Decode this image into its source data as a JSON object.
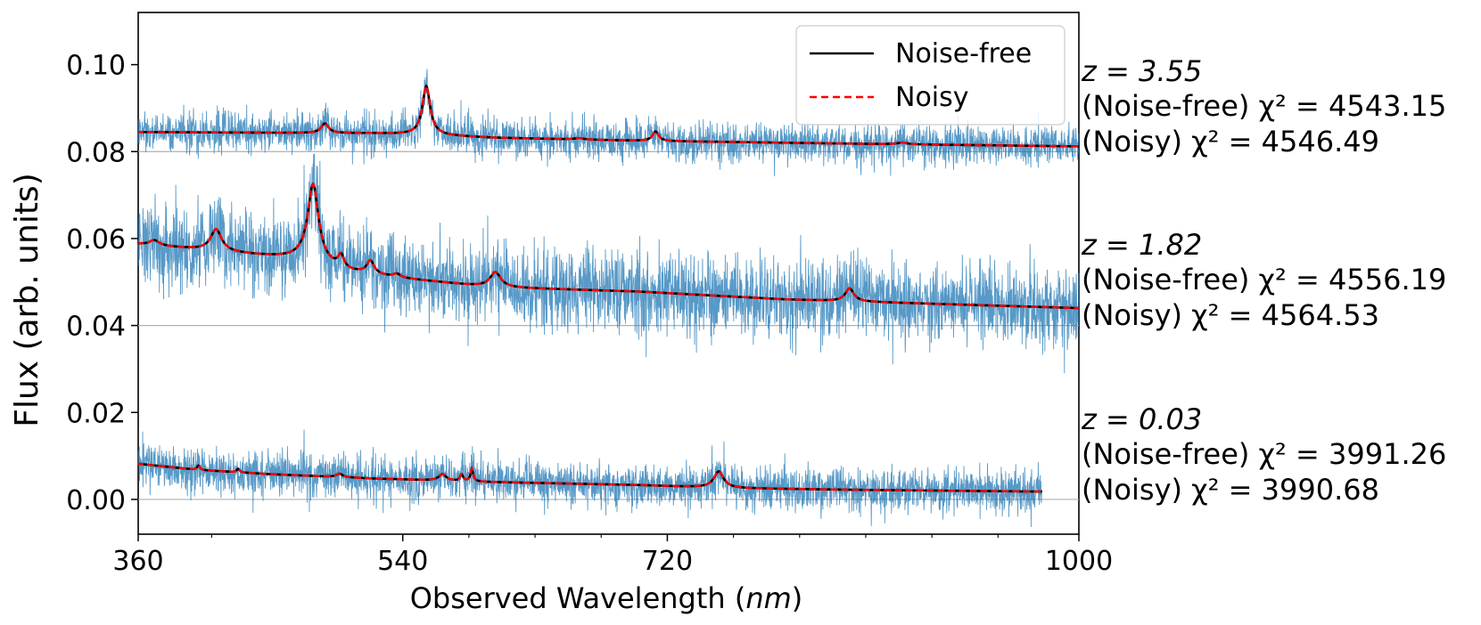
{
  "chart_data": {
    "type": "line",
    "title": "",
    "xlabel": "Observed Wavelength",
    "xlabel_unit": "nm",
    "ylabel": "Flux (arb. units)",
    "xlim": [
      360,
      1000
    ],
    "ylim": [
      -0.008,
      0.112
    ],
    "x_ticks": [
      {
        "value": 360,
        "label": "360"
      },
      {
        "value": 540,
        "label": "540"
      },
      {
        "value": 720,
        "label": "720"
      },
      {
        "value": 1000,
        "label": "1000"
      }
    ],
    "x_minor_ticks": [
      410,
      585,
      630,
      675,
      765,
      810,
      855,
      900,
      945
    ],
    "y_ticks": [
      {
        "value": 0.0,
        "label": "0.00"
      },
      {
        "value": 0.02,
        "label": "0.02"
      },
      {
        "value": 0.04,
        "label": "0.04"
      },
      {
        "value": 0.06,
        "label": "0.06"
      },
      {
        "value": 0.08,
        "label": "0.08"
      },
      {
        "value": 0.1,
        "label": "0.10"
      }
    ],
    "legend": {
      "placement": "top-right",
      "entries": [
        {
          "label": "Noise-free",
          "color": "#000000",
          "style": "solid"
        },
        {
          "label": "Noisy",
          "color": "#ff0000",
          "style": "dashed"
        }
      ]
    },
    "noise_color": "#1f77b4",
    "spectra": [
      {
        "name": "z = 3.55",
        "redshift_label": "z = 3.55",
        "noise_free_chi2_text": "(Noise-free) χ² = 4543.15",
        "noisy_chi2_text": "(Noisy) χ² = 4546.49",
        "offset": 0.08,
        "x_range": [
          360,
          1000
        ],
        "noise_sigma": 0.0022,
        "continuum": [
          [
            360,
            0.0845
          ],
          [
            520,
            0.0842
          ],
          [
            560,
            0.0838
          ],
          [
            600,
            0.0832
          ],
          [
            700,
            0.0825
          ],
          [
            850,
            0.0818
          ],
          [
            1000,
            0.0812
          ]
        ],
        "peaks": [
          {
            "center": 487,
            "amp": 0.0022,
            "width": 3
          },
          {
            "center": 556,
            "amp": 0.0112,
            "width": 3.2
          },
          {
            "center": 712,
            "amp": 0.0022,
            "width": 2.5
          },
          {
            "center": 660,
            "amp": 0.0003,
            "width": 4
          },
          {
            "center": 880,
            "amp": 0.0004,
            "width": 4
          }
        ]
      },
      {
        "name": "z = 1.82",
        "redshift_label": "z = 1.82",
        "noise_free_chi2_text": "(Noise-free) χ² = 4556.19",
        "noisy_chi2_text": "(Noisy) χ² = 4564.53",
        "offset": 0.04,
        "x_range": [
          360,
          1000
        ],
        "noise_sigma": 0.0045,
        "continuum": [
          [
            360,
            0.0587
          ],
          [
            400,
            0.0575
          ],
          [
            440,
            0.0562
          ],
          [
            470,
            0.0553
          ],
          [
            500,
            0.0525
          ],
          [
            540,
            0.0508
          ],
          [
            600,
            0.0488
          ],
          [
            700,
            0.0478
          ],
          [
            800,
            0.046
          ],
          [
            900,
            0.045
          ],
          [
            1000,
            0.044
          ]
        ],
        "peaks": [
          {
            "center": 371,
            "amp": 0.0012,
            "width": 4
          },
          {
            "center": 413,
            "amp": 0.005,
            "width": 4.5
          },
          {
            "center": 479,
            "amp": 0.018,
            "width": 4.5
          },
          {
            "center": 498,
            "amp": 0.003,
            "width": 2.5
          },
          {
            "center": 518,
            "amp": 0.003,
            "width": 3
          },
          {
            "center": 536,
            "amp": 0.0008,
            "width": 3
          },
          {
            "center": 603,
            "amp": 0.0035,
            "width": 4.5
          },
          {
            "center": 844,
            "amp": 0.003,
            "width": 3.5
          }
        ]
      },
      {
        "name": "z = 0.03",
        "redshift_label": "z = 0.03",
        "noise_free_chi2_text": "(Noise-free) χ² = 3991.26",
        "noisy_chi2_text": "(Noisy) χ² = 3990.68",
        "offset": 0.0,
        "x_range": [
          360,
          975
        ],
        "noise_sigma": 0.0025,
        "continuum": [
          [
            360,
            0.0082
          ],
          [
            400,
            0.0068
          ],
          [
            450,
            0.0058
          ],
          [
            520,
            0.0048
          ],
          [
            600,
            0.004
          ],
          [
            700,
            0.0033
          ],
          [
            760,
            0.0026
          ],
          [
            850,
            0.0022
          ],
          [
            975,
            0.0018
          ]
        ],
        "peaks": [
          {
            "center": 401,
            "amp": 0.001,
            "width": 1.2
          },
          {
            "center": 428,
            "amp": 0.0008,
            "width": 1.2
          },
          {
            "center": 497,
            "amp": 0.0008,
            "width": 2.5
          },
          {
            "center": 567,
            "amp": 0.0015,
            "width": 3
          },
          {
            "center": 580,
            "amp": 0.0015,
            "width": 1.2
          },
          {
            "center": 587,
            "amp": 0.0028,
            "width": 1.1
          },
          {
            "center": 755,
            "amp": 0.0038,
            "width": 4
          }
        ]
      }
    ]
  }
}
